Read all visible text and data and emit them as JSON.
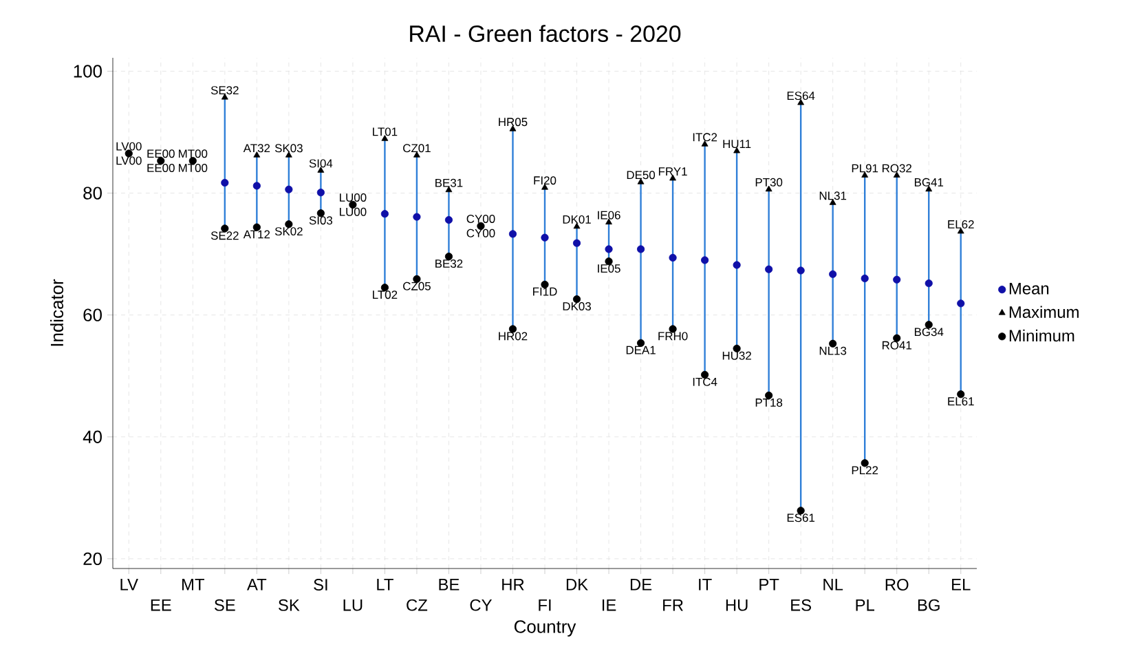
{
  "chart_data": {
    "type": "scatter",
    "title": "RAI - Green factors - 2020",
    "xlabel": "Country",
    "ylabel": "Indicator",
    "categories": [
      "LV",
      "EE",
      "MT",
      "SE",
      "AT",
      "SK",
      "SI",
      "LU",
      "LT",
      "CZ",
      "BE",
      "CY",
      "HR",
      "FI",
      "DK",
      "IE",
      "DE",
      "FR",
      "IT",
      "HU",
      "PT",
      "ES",
      "NL",
      "PL",
      "RO",
      "BG",
      "EL"
    ],
    "series": [
      {
        "name": "Mean",
        "color": "#1010a8",
        "marker": "circle",
        "values": [
          null,
          null,
          null,
          81.7,
          81.2,
          80.6,
          80.1,
          null,
          76.6,
          76.1,
          75.6,
          null,
          73.3,
          72.7,
          71.8,
          70.8,
          70.8,
          69.4,
          69.0,
          68.2,
          67.5,
          67.3,
          66.7,
          66.0,
          65.8,
          65.2,
          61.9
        ]
      },
      {
        "name": "Maximum",
        "color": "#000000",
        "marker": "triangle",
        "values": [
          null,
          null,
          null,
          95.7,
          86.2,
          86.2,
          83.7,
          null,
          88.9,
          86.2,
          80.5,
          null,
          90.5,
          80.9,
          74.5,
          75.2,
          81.8,
          82.4,
          88.0,
          86.9,
          80.6,
          94.8,
          78.4,
          82.9,
          82.9,
          80.6,
          73.7
        ]
      },
      {
        "name": "Minimum",
        "color": "#000000",
        "marker": "circle",
        "values": [
          86.5,
          85.3,
          85.3,
          74.2,
          74.4,
          74.9,
          76.7,
          78.1,
          64.5,
          65.9,
          69.6,
          74.6,
          57.7,
          65.0,
          62.6,
          68.8,
          55.4,
          57.7,
          50.2,
          54.5,
          46.8,
          27.9,
          55.3,
          35.7,
          56.2,
          58.4,
          47.0
        ]
      }
    ],
    "ylim": [
      18.4,
      102.2
    ],
    "yticks": [
      20,
      40,
      60,
      80,
      100
    ],
    "grid": true,
    "legend": "right",
    "annotations": [
      {
        "text": "LV00",
        "x": "LV",
        "y": 86.5
      },
      {
        "text": "LV00",
        "x": "LV",
        "y": 86.5
      },
      {
        "text": "EE00",
        "x": "EE",
        "y": 85.3
      },
      {
        "text": "EE00",
        "x": "EE",
        "y": 85.3
      },
      {
        "text": "MT00",
        "x": "MT",
        "y": 85.3
      },
      {
        "text": "MT00",
        "x": "MT",
        "y": 85.3
      },
      {
        "text": "SE32",
        "x": "SE",
        "y": 95.7
      },
      {
        "text": "SE22",
        "x": "SE",
        "y": 74.2
      },
      {
        "text": "AT32",
        "x": "AT",
        "y": 86.2
      },
      {
        "text": "AT12",
        "x": "AT",
        "y": 74.4
      },
      {
        "text": "SK03",
        "x": "SK",
        "y": 86.2
      },
      {
        "text": "SK02",
        "x": "SK",
        "y": 74.9
      },
      {
        "text": "SI04",
        "x": "SI",
        "y": 83.7
      },
      {
        "text": "SI03",
        "x": "SI",
        "y": 76.7
      },
      {
        "text": "LU00",
        "x": "LU",
        "y": 78.1
      },
      {
        "text": "LU00",
        "x": "LU",
        "y": 78.1
      },
      {
        "text": "LT01",
        "x": "LT",
        "y": 88.9
      },
      {
        "text": "LT02",
        "x": "LT",
        "y": 64.5
      },
      {
        "text": "CZ01",
        "x": "CZ",
        "y": 86.2
      },
      {
        "text": "CZ05",
        "x": "CZ",
        "y": 65.9
      },
      {
        "text": "BE31",
        "x": "BE",
        "y": 80.5
      },
      {
        "text": "BE32",
        "x": "BE",
        "y": 69.6
      },
      {
        "text": "CY00",
        "x": "CY",
        "y": 74.6
      },
      {
        "text": "CY00",
        "x": "CY",
        "y": 74.6
      },
      {
        "text": "HR05",
        "x": "HR",
        "y": 90.5
      },
      {
        "text": "HR02",
        "x": "HR",
        "y": 57.7
      },
      {
        "text": "FI20",
        "x": "FI",
        "y": 80.9
      },
      {
        "text": "FI1D",
        "x": "FI",
        "y": 65.0
      },
      {
        "text": "DK01",
        "x": "DK",
        "y": 74.5
      },
      {
        "text": "DK03",
        "x": "DK",
        "y": 62.6
      },
      {
        "text": "IE06",
        "x": "IE",
        "y": 75.2
      },
      {
        "text": "IE05",
        "x": "IE",
        "y": 68.8
      },
      {
        "text": "DE50",
        "x": "DE",
        "y": 81.8
      },
      {
        "text": "DEA1",
        "x": "DE",
        "y": 55.4
      },
      {
        "text": "FRY1",
        "x": "FR",
        "y": 82.4
      },
      {
        "text": "FRH0",
        "x": "FR",
        "y": 57.7
      },
      {
        "text": "ITC2",
        "x": "IT",
        "y": 88.0
      },
      {
        "text": "ITC4",
        "x": "IT",
        "y": 50.2
      },
      {
        "text": "HU11",
        "x": "HU",
        "y": 86.9
      },
      {
        "text": "HU32",
        "x": "HU",
        "y": 54.5
      },
      {
        "text": "PT30",
        "x": "PT",
        "y": 80.6
      },
      {
        "text": "PT18",
        "x": "PT",
        "y": 46.8
      },
      {
        "text": "ES64",
        "x": "ES",
        "y": 94.8
      },
      {
        "text": "ES61",
        "x": "ES",
        "y": 27.9
      },
      {
        "text": "NL31",
        "x": "NL",
        "y": 78.4
      },
      {
        "text": "NL13",
        "x": "NL",
        "y": 55.3
      },
      {
        "text": "PL91",
        "x": "PL",
        "y": 82.9
      },
      {
        "text": "PL22",
        "x": "PL",
        "y": 35.7
      },
      {
        "text": "RO32",
        "x": "RO",
        "y": 82.9
      },
      {
        "text": "RO41",
        "x": "RO",
        "y": 56.2
      },
      {
        "text": "BG41",
        "x": "BG",
        "y": 80.6
      },
      {
        "text": "BG34",
        "x": "BG",
        "y": 58.4
      },
      {
        "text": "EL62",
        "x": "EL",
        "y": 73.7
      },
      {
        "text": "EL61",
        "x": "EL",
        "y": 47.0
      }
    ]
  }
}
